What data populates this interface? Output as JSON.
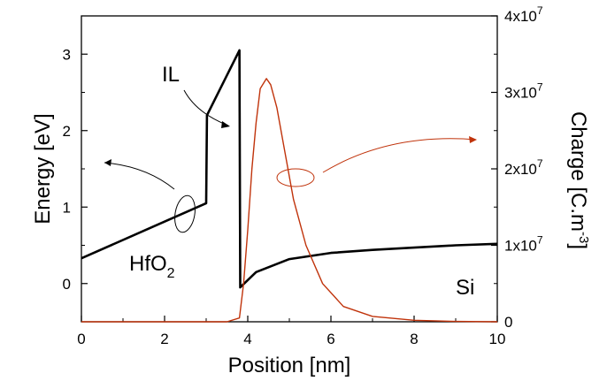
{
  "chart_data": {
    "type": "line",
    "xlabel": "Position [nm]",
    "ylabel_left": "Energy [eV]",
    "ylabel_right": "Charge [C.m",
    "ylabel_right_sup": "-3",
    "ylabel_right_tail": "]",
    "xlim": [
      0,
      10
    ],
    "ylim_left": [
      -0.5,
      3.5
    ],
    "ylim_right": [
      0,
      40000000
    ],
    "x_ticks": [
      "0",
      "2",
      "4",
      "6",
      "8",
      "10"
    ],
    "y_ticks_left": [
      "0",
      "1",
      "2",
      "3"
    ],
    "y_ticks_right": [
      {
        "mant": "0",
        "exp": ""
      },
      {
        "mant": "1x10",
        "exp": "7"
      },
      {
        "mant": "2x10",
        "exp": "7"
      },
      {
        "mant": "3x10",
        "exp": "7"
      },
      {
        "mant": "4x10",
        "exp": "7"
      }
    ],
    "series": [
      {
        "axis": "left",
        "color": "#000000",
        "points": [
          [
            0,
            0.33
          ],
          [
            3.0,
            1.05
          ],
          [
            3.02,
            2.2
          ],
          [
            3.8,
            3.05
          ],
          [
            3.82,
            -0.05
          ],
          [
            4.2,
            0.15
          ],
          [
            5.0,
            0.32
          ],
          [
            6.0,
            0.4
          ],
          [
            7.0,
            0.44
          ],
          [
            8.0,
            0.47
          ],
          [
            9.0,
            0.5
          ],
          [
            10.0,
            0.52
          ]
        ]
      },
      {
        "axis": "right",
        "color": "#c0330b",
        "points": [
          [
            0,
            0
          ],
          [
            3.5,
            0
          ],
          [
            3.8,
            500000
          ],
          [
            3.9,
            5000000
          ],
          [
            4.0,
            12000000
          ],
          [
            4.1,
            20000000
          ],
          [
            4.2,
            26000000
          ],
          [
            4.3,
            30500000
          ],
          [
            4.45,
            31800000
          ],
          [
            4.55,
            31000000
          ],
          [
            4.7,
            28000000
          ],
          [
            4.9,
            22000000
          ],
          [
            5.1,
            16000000
          ],
          [
            5.4,
            10000000
          ],
          [
            5.8,
            5000000
          ],
          [
            6.3,
            2000000
          ],
          [
            7.0,
            700000
          ],
          [
            8.0,
            200000
          ],
          [
            9.0,
            50000
          ],
          [
            10.0,
            0
          ]
        ]
      }
    ],
    "annotations": {
      "il": "IL",
      "hfo2": "HfO",
      "hfo2_sub": "2",
      "si": "Si"
    }
  }
}
